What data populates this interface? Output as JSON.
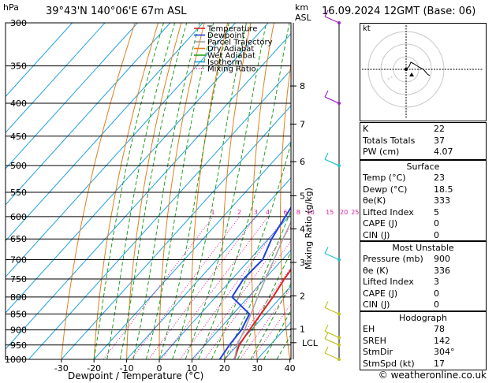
{
  "header": {
    "location": "39°43'N 140°06'E 67m ASL",
    "datetime": "16.09.2024 12GMT (Base: 06)",
    "hpa_label": "hPa",
    "km_label": "km",
    "asl_label": "ASL"
  },
  "chart_data": {
    "type": "line",
    "title": "",
    "xlabel": "Dewpoint / Temperature (°C)",
    "ylabel": "hPa",
    "right_axis_label": "Mixing Ratio (g/kg)",
    "xlim": [
      -35,
      40
    ],
    "ylim": [
      1000,
      300
    ],
    "pressure_ticks": [
      300,
      350,
      400,
      450,
      500,
      550,
      600,
      650,
      700,
      750,
      800,
      850,
      900,
      950,
      1000
    ],
    "temp_ticks": [
      -30,
      -20,
      -10,
      0,
      10,
      20,
      30,
      40
    ],
    "km_ticks": [
      {
        "label": "1",
        "p": 897
      },
      {
        "label": "2",
        "p": 797
      },
      {
        "label": "3",
        "p": 707
      },
      {
        "label": "4",
        "p": 627
      },
      {
        "label": "5",
        "p": 557
      },
      {
        "label": "6",
        "p": 493
      },
      {
        "label": "7",
        "p": 431
      },
      {
        "label": "8",
        "p": 376
      }
    ],
    "lcl": {
      "label": "LCL",
      "p": 942
    },
    "mixing_ratio_labels": [
      "1",
      "2",
      "3",
      "4",
      "6",
      "8",
      "10",
      "15",
      "20",
      "25"
    ],
    "mixing_ratio_values": [
      1,
      2,
      3,
      4,
      6,
      8,
      10,
      15,
      20,
      25
    ],
    "series": [
      {
        "name": "Temperature",
        "color": "#e02020",
        "points": [
          [
            23,
            1000
          ],
          [
            20.5,
            950
          ],
          [
            19.5,
            900
          ],
          [
            18.5,
            850
          ],
          [
            17.5,
            800
          ],
          [
            16,
            750
          ],
          [
            14.8,
            700
          ],
          [
            12.8,
            650
          ],
          [
            11,
            600
          ],
          [
            8.5,
            550
          ],
          [
            6,
            500
          ],
          [
            3,
            450
          ],
          [
            -1,
            400
          ],
          [
            -6.5,
            360
          ]
        ]
      },
      {
        "name": "Dewpoint",
        "color": "#2040e0",
        "points": [
          [
            18.5,
            1000
          ],
          [
            17.5,
            950
          ],
          [
            17,
            900
          ],
          [
            15,
            850
          ],
          [
            5,
            800
          ],
          [
            3.5,
            750
          ],
          [
            4,
            700
          ],
          [
            1,
            650
          ],
          [
            -1,
            600
          ],
          [
            -3,
            550
          ],
          [
            1,
            500
          ],
          [
            -1.5,
            450
          ],
          [
            -5,
            400
          ],
          [
            -8,
            370
          ],
          [
            -9,
            360
          ],
          [
            -14,
            320
          ],
          [
            -20,
            300
          ]
        ]
      },
      {
        "name": "Parcel Trajectory",
        "color": "#a0a0a0",
        "points": [
          [
            23,
            1000
          ],
          [
            19.5,
            942
          ],
          [
            18,
            900
          ],
          [
            15.5,
            850
          ],
          [
            12.8,
            800
          ],
          [
            10.2,
            750
          ],
          [
            7.5,
            700
          ],
          [
            4.5,
            650
          ],
          [
            1.5,
            600
          ],
          [
            -1.5,
            550
          ],
          [
            -5,
            500
          ],
          [
            -9.5,
            450
          ],
          [
            -15,
            400
          ],
          [
            -22,
            350
          ],
          [
            -30,
            300
          ]
        ]
      }
    ],
    "legend": [
      {
        "label": "Temperature",
        "color": "#e02020",
        "style": "solid"
      },
      {
        "label": "Dewpoint",
        "color": "#2040e0",
        "style": "solid"
      },
      {
        "label": "Parcel Trajectory",
        "color": "#a0a0a0",
        "style": "solid"
      },
      {
        "label": "Dry Adiabat",
        "color": "#e08020",
        "style": "solid"
      },
      {
        "label": "Wet Adiabat",
        "color": "#20a020",
        "style": "solid"
      },
      {
        "label": "Isotherm",
        "color": "#20a0e0",
        "style": "solid"
      },
      {
        "label": "Mixing Ratio",
        "color": "#e020a0",
        "style": "dotted"
      }
    ],
    "legend_position": "top-left"
  },
  "indices": [
    {
      "label": "K",
      "value": "22"
    },
    {
      "label": "Totals Totals",
      "value": "37"
    },
    {
      "label": "PW (cm)",
      "value": "4.07"
    }
  ],
  "surface": {
    "title": "Surface",
    "rows": [
      {
        "label": "Temp (°C)",
        "value": "23"
      },
      {
        "label": "Dewp (°C)",
        "value": "18.5"
      },
      {
        "label": "θe(K)",
        "value": "333"
      },
      {
        "label": "Lifted Index",
        "value": "5"
      },
      {
        "label": "CAPE (J)",
        "value": "0"
      },
      {
        "label": "CIN (J)",
        "value": "0"
      }
    ]
  },
  "most_unstable": {
    "title": "Most Unstable",
    "rows": [
      {
        "label": "Pressure (mb)",
        "value": "900"
      },
      {
        "label": "θe (K)",
        "value": "336"
      },
      {
        "label": "Lifted Index",
        "value": "3"
      },
      {
        "label": "CAPE (J)",
        "value": "0"
      },
      {
        "label": "CIN (J)",
        "value": "0"
      }
    ]
  },
  "hodograph_table": {
    "title": "Hodograph",
    "rows": [
      {
        "label": "EH",
        "value": "78"
      },
      {
        "label": "SREH",
        "value": "142"
      },
      {
        "label": "StmDir",
        "value": "304°"
      },
      {
        "label": "StmSpd (kt)",
        "value": "17"
      }
    ]
  },
  "hodograph": {
    "unit_label": "kt"
  },
  "credit": "© weatheronline.co.uk",
  "colors": {
    "isotherm": "#20a0e0",
    "dry_adiabat": "#e08020",
    "wet_adiabat": "#20a020",
    "mixing_ratio": "#e020a0",
    "wind_barb": "#20c0d0",
    "wind_barb_upper": "#a020c0",
    "wind_barb_low": "#c0c020"
  }
}
